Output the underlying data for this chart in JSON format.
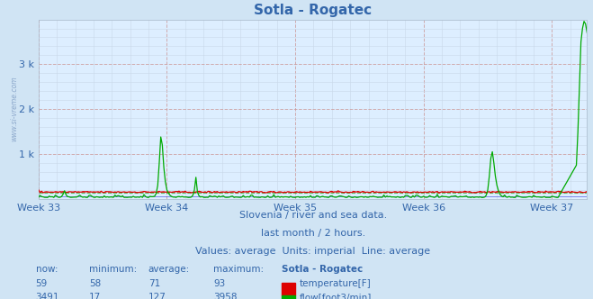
{
  "title": "Sotla - Rogatec",
  "bg_color": "#d0e4f4",
  "plot_bg_color": "#ddeeff",
  "grid_color_major_x": "#cc9999",
  "grid_color_major_y": "#cc9999",
  "grid_color_minor": "#c8d8e8",
  "x_tick_labels": [
    "Week 33",
    "Week 34",
    "Week 35",
    "Week 36",
    "Week 37"
  ],
  "x_tick_positions": [
    0,
    84,
    168,
    252,
    336
  ],
  "n_points": 360,
  "ylim": [
    0,
    4000
  ],
  "ytick_positions": [
    1000,
    2000,
    3000
  ],
  "ytick_labels": [
    "1 k",
    "2 k",
    "3 k"
  ],
  "temp_color": "#dd0000",
  "flow_color": "#00aa00",
  "blue_line_color": "#0000cc",
  "temp_avg": 71,
  "flow_avg": 127,
  "temp_min": 58,
  "temp_max": 93,
  "temp_now": 59,
  "flow_min": 17,
  "flow_max": 3958,
  "flow_now": 3491,
  "subtitle1": "Slovenia / river and sea data.",
  "subtitle2": "last month / 2 hours.",
  "subtitle3": "Values: average  Units: imperial  Line: average",
  "watermark": "www.si-vreme.com",
  "station_label": "Sotla - Rogatec",
  "label_color": "#3366aa",
  "title_color": "#3366aa",
  "temp_scale_max": 200
}
